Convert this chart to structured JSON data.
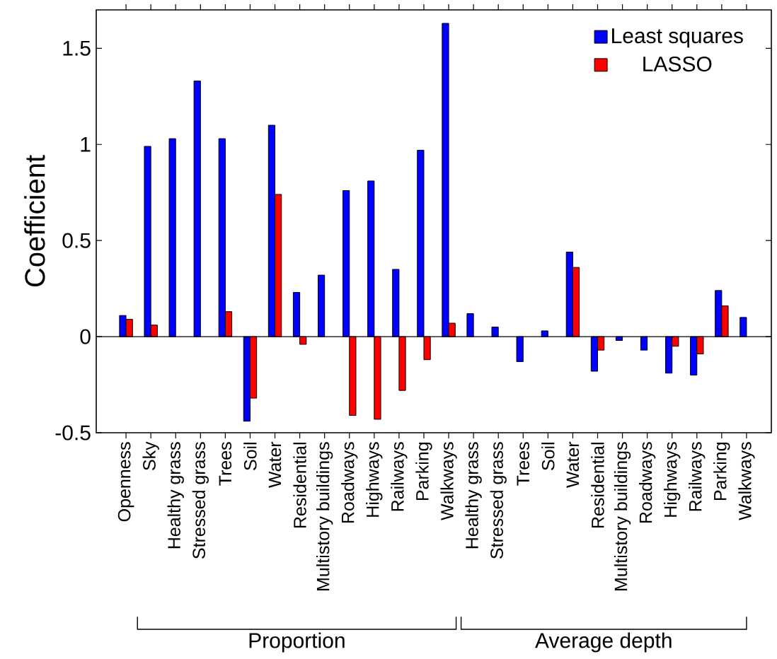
{
  "chart_data": {
    "type": "bar",
    "ylabel": "Coefficient",
    "categories": [
      "Openness",
      "Sky",
      "Healthy grass",
      "Stressed grass",
      "Trees",
      "Soil",
      "Water",
      "Residential",
      "Multistory buildings",
      "Roadways",
      "Highways",
      "Railways",
      "Parking",
      "Walkways",
      "Healthy grass",
      "Stressed grass",
      "Trees",
      "Soil",
      "Water",
      "Residential",
      "Multistory buildings",
      "Roadways",
      "Highways",
      "Railways",
      "Parking",
      "Walkways"
    ],
    "series": [
      {
        "name": "Least squares",
        "color": "#0000ff",
        "values": [
          0.11,
          0.99,
          1.03,
          1.33,
          1.03,
          -0.44,
          1.1,
          0.23,
          0.32,
          0.76,
          0.81,
          0.35,
          0.97,
          1.63,
          0.12,
          0.05,
          -0.13,
          0.03,
          0.44,
          -0.18,
          -0.02,
          -0.07,
          -0.19,
          -0.2,
          0.24,
          0.1
        ]
      },
      {
        "name": "LASSO",
        "color": "#ff0000",
        "values": [
          0.09,
          0.06,
          null,
          null,
          0.13,
          -0.32,
          0.74,
          -0.04,
          null,
          -0.41,
          -0.43,
          -0.28,
          -0.12,
          0.07,
          null,
          null,
          null,
          null,
          0.36,
          -0.07,
          null,
          null,
          -0.05,
          -0.09,
          0.16,
          null
        ]
      }
    ],
    "ylim": [
      -0.5,
      1.7
    ],
    "yticks": [
      -0.5,
      0,
      0.5,
      1,
      1.5
    ],
    "legend": "top right",
    "annotations": [
      "Proportion",
      "Average depth"
    ]
  }
}
